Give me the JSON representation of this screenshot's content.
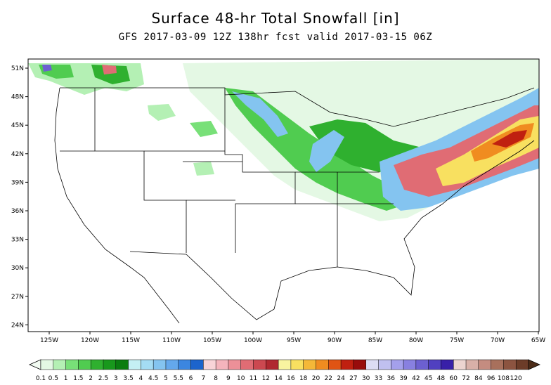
{
  "header": {
    "title": "Surface 48-hr Total Snowfall [in]",
    "subtitle": "GFS 2017-03-09 12Z 138hr fcst valid 2017-03-15 06Z"
  },
  "map": {
    "lat_labels": [
      "51N",
      "48N",
      "45N",
      "42N",
      "39N",
      "36N",
      "33N",
      "30N",
      "27N",
      "24N"
    ],
    "lon_labels": [
      "125W",
      "120W",
      "115W",
      "110W",
      "105W",
      "100W",
      "95W",
      "90W",
      "85W",
      "80W",
      "75W",
      "70W",
      "65W"
    ]
  },
  "legend": {
    "labels": [
      "0.1",
      "0.5",
      "1",
      "1.5",
      "2",
      "2.5",
      "3",
      "3.5",
      "4",
      "4.5",
      "5",
      "5.5",
      "6",
      "7",
      "8",
      "9",
      "10",
      "11",
      "12",
      "14",
      "16",
      "18",
      "20",
      "22",
      "24",
      "27",
      "30",
      "33",
      "36",
      "39",
      "42",
      "45",
      "48",
      "60",
      "72",
      "84",
      "96",
      "108",
      "120"
    ],
    "colors": [
      "#e4f8e4",
      "#b4f0b4",
      "#78e078",
      "#50cc50",
      "#2fb02f",
      "#18981c",
      "#0a7d10",
      "#c4f0f4",
      "#a4dcf4",
      "#84c4f0",
      "#64a8ec",
      "#3c86e0",
      "#1c64cc",
      "#f8d4d8",
      "#f4b4bc",
      "#ec9098",
      "#e06c74",
      "#cc4850",
      "#b02830",
      "#f8f4a0",
      "#f8e060",
      "#f4b838",
      "#f08c20",
      "#e05414",
      "#c02010",
      "#980c0c",
      "#dcdcf4",
      "#c0c0f0",
      "#a4a0ec",
      "#8880e0",
      "#6c60d0",
      "#5040c0",
      "#3820a8",
      "#ecd4d0",
      "#d8b0a8",
      "#c48c80",
      "#a8705c",
      "#8c5440",
      "#6c3c28"
    ]
  }
}
